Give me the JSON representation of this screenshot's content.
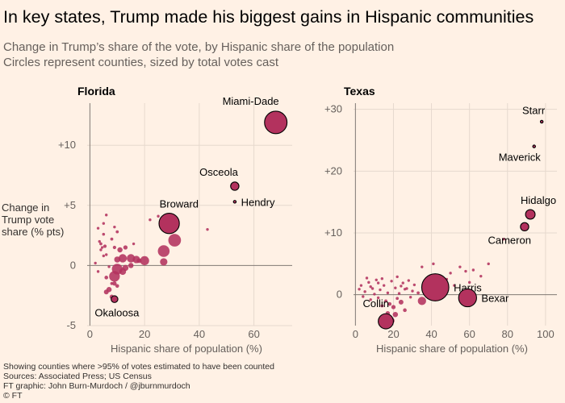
{
  "header": {
    "title": "In key states, Trump made his biggest gains in Hispanic communities",
    "subtitle1": "Change in Trump’s share of the vote, by Hispanic share of the population",
    "subtitle2": "Circles represent counties, sized by total votes cast"
  },
  "footer": {
    "note": "Showing counties where >95% of votes estimated to have been counted",
    "sources": "Sources: Associated Press; US Census",
    "credit": "FT graphic: John Burn-Murdoch / @jburnmurdoch",
    "copyright": "© FT"
  },
  "ylabel_lines": [
    "Change in",
    "Trump vote",
    "share (% pts)"
  ],
  "colors": {
    "dot": "#b3325e",
    "highlight_stroke": "#000000",
    "axis": "#807973",
    "grid": "#e6d9ce",
    "background": "#fff1e5"
  },
  "chart_data": [
    {
      "type": "scatter",
      "title": "Florida",
      "xlabel": "Hispanic share of population (%)",
      "ylabel": "Change in Trump vote share (% pts)",
      "xlim": [
        -1,
        74
      ],
      "ylim": [
        -5,
        13.5
      ],
      "xticks": [
        0,
        20,
        40,
        60
      ],
      "xtick_labels": [
        "0",
        "20",
        "40",
        "60"
      ],
      "yticks": [
        -5,
        0,
        5,
        10
      ],
      "ytick_labels": [
        "-5",
        "0",
        "+5",
        "+10"
      ],
      "grid": true,
      "labeled": [
        {
          "name": "Miami-Dade",
          "x": 68,
          "y": 11.9,
          "votes": 1100,
          "label_pos": "above-left"
        },
        {
          "name": "Osceola",
          "x": 53,
          "y": 6.6,
          "votes": 150,
          "label_pos": "above-left"
        },
        {
          "name": "Hendry",
          "x": 53,
          "y": 5.3,
          "votes": 12,
          "label_pos": "right"
        },
        {
          "name": "Broward",
          "x": 29,
          "y": 3.5,
          "votes": 900,
          "label_pos": "above-right"
        },
        {
          "name": "Okaloosa",
          "x": 9,
          "y": -2.8,
          "votes": 100,
          "label_pos": "below"
        }
      ],
      "points": [
        {
          "x": 3,
          "y": 3.1,
          "votes": 10
        },
        {
          "x": 3.5,
          "y": 2.0,
          "votes": 15
        },
        {
          "x": 4,
          "y": 1.8,
          "votes": 20
        },
        {
          "x": 4.5,
          "y": 1.5,
          "votes": 12
        },
        {
          "x": 5,
          "y": 2.6,
          "votes": 18
        },
        {
          "x": 5.5,
          "y": 1.6,
          "votes": 25
        },
        {
          "x": 4,
          "y": 1.3,
          "votes": 10
        },
        {
          "x": 6,
          "y": 0.9,
          "votes": 15
        },
        {
          "x": 5,
          "y": 0.8,
          "votes": 10
        },
        {
          "x": 6,
          "y": 4.2,
          "votes": 12
        },
        {
          "x": 8,
          "y": 2.2,
          "votes": 20
        },
        {
          "x": 9,
          "y": 3.2,
          "votes": 15
        },
        {
          "x": 9,
          "y": 1.5,
          "votes": 25
        },
        {
          "x": 11,
          "y": 1.3,
          "votes": 60
        },
        {
          "x": 13,
          "y": 1.5,
          "votes": 40
        },
        {
          "x": 10,
          "y": 0.5,
          "votes": 80
        },
        {
          "x": 12,
          "y": 0.6,
          "votes": 150
        },
        {
          "x": 15,
          "y": 0.6,
          "votes": 150
        },
        {
          "x": 17,
          "y": 0.5,
          "votes": 120
        },
        {
          "x": 20,
          "y": 0.4,
          "votes": 180
        },
        {
          "x": 7,
          "y": -0.1,
          "votes": 15
        },
        {
          "x": 10,
          "y": -0.3,
          "votes": 250
        },
        {
          "x": 13,
          "y": -0.2,
          "votes": 80
        },
        {
          "x": 15,
          "y": 0.0,
          "votes": 60
        },
        {
          "x": 6,
          "y": -1.0,
          "votes": 30
        },
        {
          "x": 9,
          "y": -0.9,
          "votes": 250
        },
        {
          "x": 12,
          "y": -0.5,
          "votes": 100
        },
        {
          "x": 9,
          "y": -1.5,
          "votes": 40
        },
        {
          "x": 7,
          "y": -2.0,
          "votes": 60
        },
        {
          "x": 10,
          "y": -1.7,
          "votes": 30
        },
        {
          "x": 6,
          "y": -2.2,
          "votes": 50
        },
        {
          "x": 8,
          "y": -2.6,
          "votes": 40
        },
        {
          "x": 8,
          "y": -1.5,
          "votes": 20
        },
        {
          "x": 27,
          "y": 1.2,
          "votes": 300
        },
        {
          "x": 31,
          "y": 2.1,
          "votes": 350
        },
        {
          "x": 27,
          "y": 0.3,
          "votes": 120
        },
        {
          "x": 18,
          "y": 0.4,
          "votes": 50
        },
        {
          "x": 22,
          "y": 3.8,
          "votes": 10
        },
        {
          "x": 25,
          "y": 4.1,
          "votes": 10
        },
        {
          "x": 43,
          "y": 3.0,
          "votes": 10
        },
        {
          "x": 16,
          "y": 1.8,
          "votes": 10
        },
        {
          "x": 2,
          "y": 0.2,
          "votes": 10
        },
        {
          "x": 5,
          "y": 3.5,
          "votes": 10
        },
        {
          "x": 3,
          "y": -0.5,
          "votes": 10
        },
        {
          "x": 10,
          "y": 2.8,
          "votes": 20
        }
      ]
    },
    {
      "type": "scatter",
      "title": "Texas",
      "xlabel": "Hispanic share of population (%)",
      "ylabel": "Change in Trump vote share (% pts)",
      "xlim": [
        -1,
        106
      ],
      "ylim": [
        -5,
        31
      ],
      "xticks": [
        0,
        20,
        40,
        60,
        80,
        100
      ],
      "xtick_labels": [
        "0",
        "20",
        "40",
        "60",
        "80",
        "100"
      ],
      "yticks": [
        0,
        10,
        20,
        30
      ],
      "ytick_labels": [
        "0",
        "+10",
        "+20",
        "+30"
      ],
      "grid": true,
      "labeled": [
        {
          "name": "Starr",
          "x": 98,
          "y": 28.0,
          "votes": 10,
          "label_pos": "above-left"
        },
        {
          "name": "Maverick",
          "x": 94,
          "y": 24.0,
          "votes": 15,
          "label_pos": "below-right"
        },
        {
          "name": "Hidalgo",
          "x": 92,
          "y": 13.0,
          "votes": 200,
          "label_pos": "above-right"
        },
        {
          "name": "Cameron",
          "x": 89,
          "y": 11.0,
          "votes": 150,
          "label_pos": "below-right"
        },
        {
          "name": "Harris",
          "x": 42,
          "y": 1.2,
          "votes": 1600,
          "label_pos": "right"
        },
        {
          "name": "Bexar",
          "x": 59,
          "y": -0.5,
          "votes": 700,
          "label_pos": "right"
        },
        {
          "name": "Collin",
          "x": 16,
          "y": -4.3,
          "votes": 500,
          "label_pos": "above-left"
        }
      ],
      "points": [
        {
          "x": 3,
          "y": 1.5,
          "votes": 10
        },
        {
          "x": 5,
          "y": 0.5,
          "votes": 10
        },
        {
          "x": 7,
          "y": 2.0,
          "votes": 10
        },
        {
          "x": 9,
          "y": 1.0,
          "votes": 10
        },
        {
          "x": 11,
          "y": 2.4,
          "votes": 10
        },
        {
          "x": 13,
          "y": 0.8,
          "votes": 10
        },
        {
          "x": 15,
          "y": 1.5,
          "votes": 15
        },
        {
          "x": 17,
          "y": 0.3,
          "votes": 10
        },
        {
          "x": 19,
          "y": 2.2,
          "votes": 10
        },
        {
          "x": 21,
          "y": 1.1,
          "votes": 15
        },
        {
          "x": 23,
          "y": 0.2,
          "votes": 10
        },
        {
          "x": 25,
          "y": 1.9,
          "votes": 15
        },
        {
          "x": 27,
          "y": 1.0,
          "votes": 10
        },
        {
          "x": 29,
          "y": -0.4,
          "votes": 10
        },
        {
          "x": 31,
          "y": 1.6,
          "votes": 15
        },
        {
          "x": 4,
          "y": -0.3,
          "votes": 10
        },
        {
          "x": 6,
          "y": 2.7,
          "votes": 10
        },
        {
          "x": 8,
          "y": -0.8,
          "votes": 10
        },
        {
          "x": 10,
          "y": 0.1,
          "votes": 15
        },
        {
          "x": 12,
          "y": -0.5,
          "votes": 10
        },
        {
          "x": 14,
          "y": 2.6,
          "votes": 10
        },
        {
          "x": 16,
          "y": -1.0,
          "votes": 20
        },
        {
          "x": 18,
          "y": -1.5,
          "votes": 30
        },
        {
          "x": 20,
          "y": -2.0,
          "votes": 40
        },
        {
          "x": 22,
          "y": -0.6,
          "votes": 20
        },
        {
          "x": 24,
          "y": -1.2,
          "votes": 50
        },
        {
          "x": 26,
          "y": -2.5,
          "votes": 30
        },
        {
          "x": 21,
          "y": -3.2,
          "votes": 60
        },
        {
          "x": 17,
          "y": -3.0,
          "votes": 40
        },
        {
          "x": 19,
          "y": -4.2,
          "votes": 80
        },
        {
          "x": 14,
          "y": -1.8,
          "votes": 20
        },
        {
          "x": 35,
          "y": -1.0,
          "votes": 150
        },
        {
          "x": 33,
          "y": 0.3,
          "votes": 20
        },
        {
          "x": 37,
          "y": 2.0,
          "votes": 15
        },
        {
          "x": 38,
          "y": 0.8,
          "votes": 20
        },
        {
          "x": 40,
          "y": 3.0,
          "votes": 15
        },
        {
          "x": 41,
          "y": 2.2,
          "votes": 20
        },
        {
          "x": 43,
          "y": 2.7,
          "votes": 15
        },
        {
          "x": 44,
          "y": 1.8,
          "votes": 20
        },
        {
          "x": 46,
          "y": 0.5,
          "votes": 15
        },
        {
          "x": 48,
          "y": 2.5,
          "votes": 10
        },
        {
          "x": 50,
          "y": 3.5,
          "votes": 10
        },
        {
          "x": 52,
          "y": 1.5,
          "votes": 10
        },
        {
          "x": 55,
          "y": 4.5,
          "votes": 10
        },
        {
          "x": 58,
          "y": 3.8,
          "votes": 10
        },
        {
          "x": 60,
          "y": 2.0,
          "votes": 10
        },
        {
          "x": 62,
          "y": 4.0,
          "votes": 10
        },
        {
          "x": 66,
          "y": 3.0,
          "votes": 10
        },
        {
          "x": 70,
          "y": 5.0,
          "votes": 10
        },
        {
          "x": 35,
          "y": 4.5,
          "votes": 10
        },
        {
          "x": 41,
          "y": 5.0,
          "votes": 10
        },
        {
          "x": 78,
          "y": 9.0,
          "votes": 10
        },
        {
          "x": 28,
          "y": 2.3,
          "votes": 10
        },
        {
          "x": 2,
          "y": 0.9,
          "votes": 10
        },
        {
          "x": 24,
          "y": 1.4,
          "votes": 10
        },
        {
          "x": 30,
          "y": 0.6,
          "votes": 10
        },
        {
          "x": 26,
          "y": 0.9,
          "votes": 10
        },
        {
          "x": 12,
          "y": 1.9,
          "votes": 10
        },
        {
          "x": 8,
          "y": 1.3,
          "votes": 10
        },
        {
          "x": 22,
          "y": 2.9,
          "votes": 10
        }
      ]
    }
  ]
}
